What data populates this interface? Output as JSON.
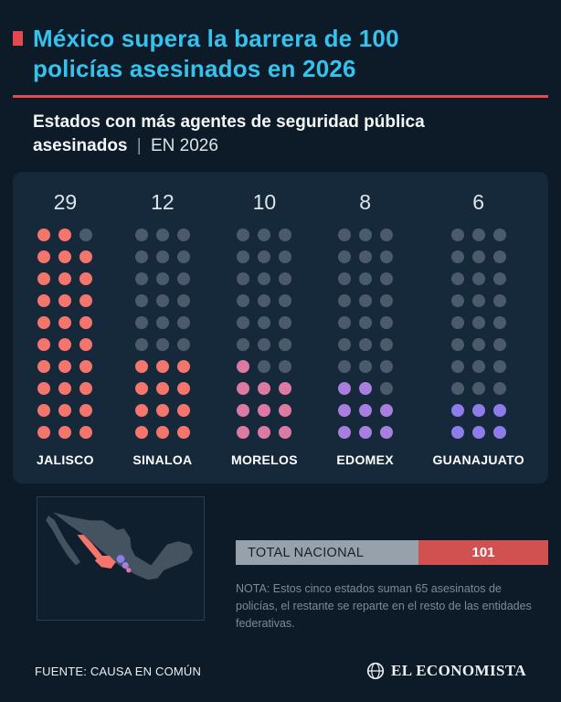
{
  "header": {
    "title": "México supera la barrera de 100 policías asesinados en 2026",
    "subtitle": "Estados con más agentes de seguridad pública asesinados",
    "separator": "|",
    "period": "EN 2026"
  },
  "chart_data": {
    "type": "waffle",
    "title": "Estados con más agentes de seguridad pública asesinados, EN 2026",
    "categories": [
      "JALISCO",
      "SINALOA",
      "MORELOS",
      "EDOMEX",
      "GUANAJUATO"
    ],
    "values": [
      29,
      12,
      10,
      8,
      6
    ],
    "grid": {
      "rows": 10,
      "cols": 3,
      "dots_per_state": 30,
      "fill_order": "bottom-up, left-to-right"
    },
    "colors": [
      "#f4756c",
      "#f4756c",
      "#dd7aa4",
      "#a87ede",
      "#8d7ce9"
    ],
    "empty_color": "#4c5b6b",
    "total_national": 101,
    "top5_sum": 65,
    "legend_position": "none"
  },
  "total": {
    "label": "TOTAL NACIONAL",
    "value": "101"
  },
  "note": "NOTA: Estos cinco estados suman 65 asesinatos de policías, el restante se reparte en el resto de las entidades federativas.",
  "footer": {
    "source": "FUENTE: CAUSA EN COMÚN",
    "brand": "EL ECONOMISTA"
  },
  "colors": {
    "background": "#0d1b28",
    "panel": "#16293b",
    "title_cyan": "#35c3ee",
    "accent_red": "#e5484d",
    "total_bar_grey": "#97a1ab",
    "total_badge_red": "#d15151",
    "note_grey": "#7d8a96",
    "map_land": "#44535f"
  }
}
